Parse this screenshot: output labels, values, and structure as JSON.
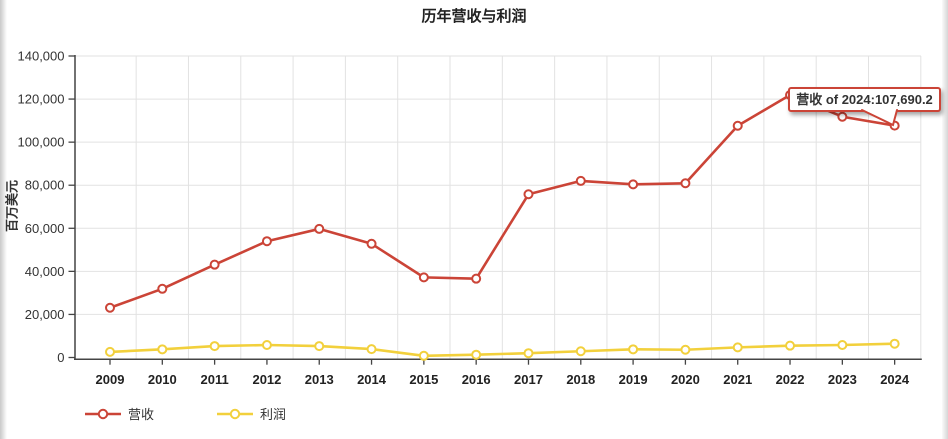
{
  "chart_data": {
    "type": "line",
    "title": "历年营收与利润",
    "ylabel": "百万美元",
    "xlabel": "",
    "ylim": [
      0,
      140000
    ],
    "y_ticks": [
      0,
      20000,
      40000,
      60000,
      80000,
      100000,
      120000,
      140000
    ],
    "categories": [
      "2009",
      "2010",
      "2011",
      "2012",
      "2013",
      "2014",
      "2015",
      "2016",
      "2017",
      "2018",
      "2019",
      "2020",
      "2021",
      "2022",
      "2023",
      "2024"
    ],
    "series": [
      {
        "name": "营收",
        "color": "#cb4437",
        "values": [
          23100,
          31900,
          43100,
          54000,
          59700,
          52800,
          37200,
          36600,
          75800,
          82000,
          80400,
          80900,
          107600,
          121900,
          111800,
          107690.2
        ]
      },
      {
        "name": "利润",
        "color": "#f2d03c",
        "values": [
          2600,
          3800,
          5300,
          5800,
          5300,
          3900,
          800,
          1300,
          2000,
          2900,
          3800,
          3600,
          4700,
          5500,
          5800,
          6400
        ]
      }
    ],
    "grid": true,
    "legend_position": "bottom-left"
  },
  "tooltip": {
    "text": "营收 of 2024:107,690.2",
    "series": "营收",
    "year": "2024",
    "value": "107,690.2"
  },
  "colors": {
    "revenue": "#cb4437",
    "profit": "#f2d03c",
    "grid": "#e2e2e2",
    "axis": "#444444",
    "text": "#333333"
  }
}
